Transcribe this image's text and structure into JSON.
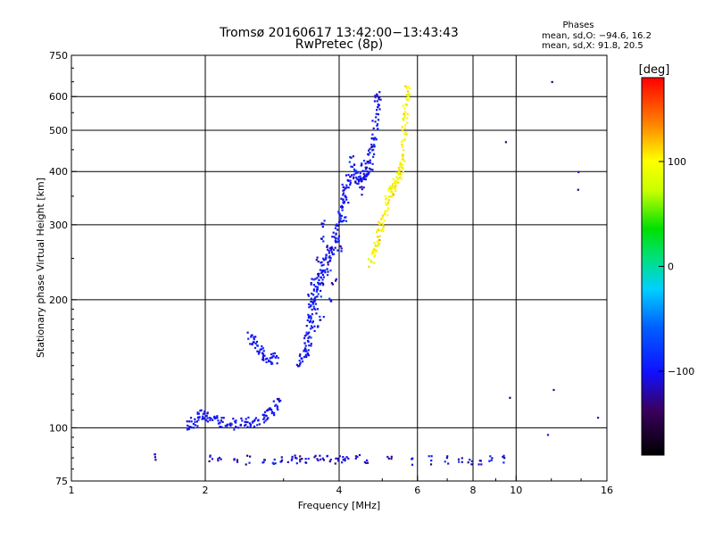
{
  "chart_data": {
    "type": "scatter",
    "title": "Tromsø 20160617 13:42:00−13:43:43",
    "subtitle": "RwPretec (8p)",
    "xlabel": "Frequency [MHz]",
    "ylabel": "Stationary phase Virtual Height [km]",
    "xscale": "log2",
    "yscale": "log",
    "xlim": [
      1,
      16
    ],
    "ylim": [
      75,
      750
    ],
    "xticks": [
      1,
      2,
      4,
      6,
      8,
      10,
      16
    ],
    "xgrid": [
      2,
      4,
      6,
      8,
      10
    ],
    "yticks": [
      75,
      100,
      200,
      300,
      400,
      500,
      600,
      750
    ],
    "ygrid": [
      100,
      200,
      300,
      400,
      500,
      600
    ],
    "grid": true,
    "stats": {
      "heading": "Phases",
      "line1": "mean, sd,O: −94.6, 16.2",
      "line2": "mean, sd,X:  91.8, 20.5"
    },
    "colorbar": {
      "label": "[deg]",
      "min": -180,
      "max": 180,
      "ticks": [
        100,
        0,
        -100
      ],
      "tick_labels": [
        "100",
        "0",
        "−100"
      ]
    },
    "series": [
      {
        "trace": "O",
        "color_value": -100,
        "segments": [
          [
            [
              1.82,
              101
            ],
            [
              1.9,
              103
            ],
            [
              1.97,
              107
            ],
            [
              2.05,
              106
            ],
            [
              2.15,
              103
            ],
            [
              2.3,
              102
            ],
            [
              2.45,
              103
            ],
            [
              2.6,
              104
            ],
            [
              2.75,
              107
            ],
            [
              2.85,
              111
            ],
            [
              2.95,
              117
            ]
          ],
          [
            [
              2.5,
              165
            ],
            [
              2.6,
              155
            ],
            [
              2.7,
              149
            ],
            [
              2.8,
              146
            ],
            [
              2.9,
              145
            ]
          ],
          [
            [
              3.25,
              140
            ],
            [
              3.35,
              150
            ],
            [
              3.4,
              165
            ],
            [
              3.45,
              185
            ],
            [
              3.5,
              200
            ],
            [
              3.55,
              215
            ],
            [
              3.6,
              225
            ],
            [
              3.7,
              240
            ],
            [
              3.8,
              255
            ],
            [
              3.9,
              275
            ],
            [
              4.0,
              300
            ],
            [
              4.05,
              330
            ],
            [
              4.1,
              360
            ],
            [
              4.2,
              380
            ],
            [
              4.35,
              395
            ],
            [
              4.5,
              385
            ],
            [
              4.6,
              395
            ],
            [
              4.7,
              430
            ],
            [
              4.8,
              480
            ],
            [
              4.85,
              550
            ],
            [
              4.9,
              620
            ]
          ]
        ],
        "scatter": [
          [
            3.4,
            145
          ],
          [
            3.45,
            160
          ],
          [
            3.5,
            175
          ],
          [
            3.55,
            190
          ],
          [
            3.6,
            205
          ],
          [
            3.65,
            215
          ],
          [
            3.75,
            230
          ],
          [
            3.6,
            250
          ],
          [
            3.65,
            275
          ],
          [
            3.7,
            300
          ],
          [
            3.8,
            240
          ],
          [
            3.5,
            220
          ],
          [
            3.45,
            205
          ],
          [
            3.55,
            170
          ],
          [
            3.65,
            180
          ],
          [
            3.35,
            155
          ],
          [
            3.85,
            200
          ],
          [
            3.9,
            220
          ],
          [
            4.0,
            265
          ],
          [
            4.15,
            345
          ],
          [
            4.3,
            410
          ],
          [
            4.4,
            370
          ],
          [
            4.5,
            420
          ],
          [
            4.55,
            360
          ],
          [
            4.6,
            400
          ],
          [
            4.75,
            460
          ],
          [
            4.85,
            590
          ],
          [
            4.7,
            410
          ],
          [
            4.25,
            430
          ],
          [
            4.1,
            310
          ],
          [
            3.95,
            280
          ],
          [
            3.8,
            265
          ]
        ]
      },
      {
        "trace": "X",
        "color_value": 100,
        "segments": [
          [
            [
              4.75,
              250
            ],
            [
              4.85,
              270
            ],
            [
              4.95,
              290
            ],
            [
              5.05,
              320
            ],
            [
              5.15,
              350
            ],
            [
              5.3,
              370
            ],
            [
              5.4,
              380
            ],
            [
              5.5,
              400
            ],
            [
              5.55,
              440
            ],
            [
              5.6,
              500
            ],
            [
              5.65,
              570
            ],
            [
              5.7,
              640
            ]
          ]
        ],
        "scatter": [
          [
            4.7,
            245
          ],
          [
            5.25,
            360
          ],
          [
            5.45,
            390
          ],
          [
            5.6,
            540
          ],
          [
            5.7,
            620
          ],
          [
            4.9,
            275
          ]
        ]
      },
      {
        "trace": "E-region",
        "color_value": -110,
        "scatter": [
          [
            1.55,
            85
          ],
          [
            2.05,
            85
          ],
          [
            2.15,
            84
          ],
          [
            2.35,
            84
          ],
          [
            2.5,
            84
          ],
          [
            2.7,
            84
          ],
          [
            2.85,
            83
          ],
          [
            2.95,
            84
          ],
          [
            3.1,
            85
          ],
          [
            3.2,
            84
          ],
          [
            3.3,
            85
          ],
          [
            3.4,
            84
          ],
          [
            3.55,
            85
          ],
          [
            3.65,
            84
          ],
          [
            3.8,
            85
          ],
          [
            3.95,
            84
          ],
          [
            4.05,
            85
          ],
          [
            4.15,
            84
          ],
          [
            4.4,
            85
          ],
          [
            4.6,
            84
          ],
          [
            5.2,
            84
          ],
          [
            5.8,
            83
          ],
          [
            6.4,
            84
          ],
          [
            7.0,
            84
          ],
          [
            7.5,
            83
          ],
          [
            7.9,
            84
          ],
          [
            8.3,
            83
          ],
          [
            8.8,
            84
          ],
          [
            9.4,
            84
          ]
        ]
      },
      {
        "trace": "noise",
        "color_value": -120,
        "scatter": [
          [
            9.5,
            480
          ],
          [
            12.0,
            650
          ],
          [
            13.8,
            395
          ],
          [
            13.8,
            370
          ],
          [
            9.6,
            120
          ],
          [
            11.9,
            98
          ],
          [
            15.2,
            105
          ],
          [
            12.3,
            120
          ]
        ]
      }
    ]
  }
}
